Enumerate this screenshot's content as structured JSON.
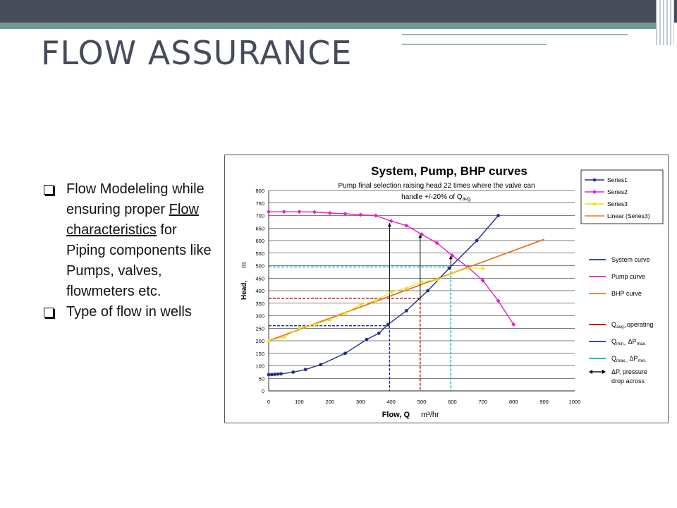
{
  "slide": {
    "title": "FLOW ASSURANCE",
    "bullets": [
      {
        "pre": "Flow Modeleling while ensuring proper ",
        "link": "Flow characteristics",
        "post": " for Piping components like Pumps, valves, flowmeters etc."
      },
      {
        "pre": "Type of flow in wells",
        "link": "",
        "post": ""
      }
    ]
  },
  "chart_data": {
    "type": "line",
    "title": "System, Pump, BHP curves",
    "subtitle_line1": "Pump final selection raising head 22 times where the valve can",
    "subtitle_line2": "handle +/-20% of Q",
    "subtitle_sub": "avg.",
    "xlabel": "Flow, Q",
    "xunit": "m³/hr",
    "ylabel": "Head,",
    "yunit": "m",
    "xlim": [
      0,
      1000
    ],
    "ylim": [
      0,
      800
    ],
    "xticks": [
      0,
      100,
      200,
      300,
      400,
      500,
      600,
      700,
      800,
      900,
      1000
    ],
    "yticks": [
      0,
      50,
      100,
      150,
      200,
      250,
      300,
      350,
      400,
      450,
      500,
      550,
      600,
      650,
      700,
      750,
      800
    ],
    "grid": "horizontal",
    "series": [
      {
        "name": "Series1",
        "color": "#1f2f8a",
        "marker": "circle",
        "x": [
          0,
          10,
          20,
          30,
          40,
          80,
          120,
          170,
          250,
          320,
          360,
          390,
          450,
          520,
          590,
          680,
          750
        ],
        "y": [
          65,
          65,
          66,
          67,
          68,
          75,
          85,
          105,
          150,
          205,
          230,
          265,
          320,
          400,
          490,
          600,
          700
        ]
      },
      {
        "name": "Series2",
        "color": "#e020d0",
        "marker": "diamond",
        "x": [
          0,
          50,
          100,
          150,
          200,
          250,
          300,
          350,
          400,
          450,
          500,
          550,
          600,
          650,
          700,
          750,
          800
        ],
        "y": [
          715,
          715,
          715,
          714,
          710,
          707,
          703,
          700,
          678,
          660,
          625,
          590,
          540,
          495,
          440,
          360,
          265
        ]
      },
      {
        "name": "Series3",
        "color": "#f0e000",
        "marker": "triangle",
        "x": [
          0,
          50,
          100,
          150,
          200,
          250,
          300,
          350,
          400,
          450,
          500,
          550,
          600,
          650,
          700
        ],
        "y": [
          200,
          215,
          250,
          265,
          285,
          310,
          345,
          360,
          395,
          410,
          435,
          445,
          470,
          490,
          490
        ]
      }
    ],
    "trend": {
      "name": "Linear (Series3)",
      "color": "#e8782a",
      "x": [
        0,
        900
      ],
      "y": [
        200,
        605
      ]
    },
    "vlines": [
      {
        "name": "Q avg. operating",
        "color": "#c00000",
        "x": 495,
        "y": 370
      },
      {
        "name": "Q min., ΔP max.",
        "color": "#1f2f8a",
        "x": 395,
        "y": 260
      },
      {
        "name": "Q max., ΔP min.",
        "color": "#00b0d8",
        "x": 595,
        "y": 495
      }
    ],
    "arrows": [
      {
        "x": 395,
        "y1": 265,
        "y2": 670
      },
      {
        "x": 495,
        "y1": 370,
        "y2": 625
      },
      {
        "x": 595,
        "y1": 495,
        "y2": 540
      }
    ],
    "legend_top": [
      "Series1",
      "Series2",
      "Series3",
      "Linear (Series3)"
    ],
    "legend_side": [
      {
        "kind": "line",
        "color": "#1f2f8a",
        "label": "System curve",
        "sub": "",
        "post": ""
      },
      {
        "kind": "line",
        "color": "#e020d0",
        "label": "Pump curve",
        "sub": "",
        "post": ""
      },
      {
        "kind": "line",
        "color": "#e8782a",
        "label": "BHP curve",
        "sub": "",
        "post": ""
      },
      {
        "kind": "line",
        "color": "#c00000",
        "label": "Q",
        "sub": "avg.",
        "post": ",operating"
      },
      {
        "kind": "line",
        "color": "#1f2f8a",
        "label": "Q",
        "sub": "min.,",
        "post": " ΔP",
        "sub2": "max."
      },
      {
        "kind": "line",
        "color": "#00b0d8",
        "label": "Q",
        "sub": "max.,",
        "post": " ΔP",
        "sub2": "min."
      },
      {
        "kind": "arrow",
        "color": "#000000",
        "label": "ΔP, pressure",
        "label2": "drop across"
      }
    ]
  }
}
